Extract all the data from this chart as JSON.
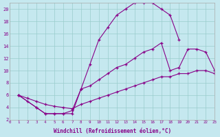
{
  "xlabel": "Windchill (Refroidissement éolien,°C)",
  "background_color": "#c5e8ef",
  "line_color": "#880088",
  "grid_color": "#99cccc",
  "xlim": [
    0,
    23
  ],
  "ylim": [
    2,
    21
  ],
  "curve1_x": [
    1,
    2,
    3,
    4,
    5,
    6,
    7,
    8,
    9,
    10,
    11,
    12,
    13,
    14,
    15,
    16,
    17,
    18,
    19
  ],
  "curve1_y": [
    6,
    5,
    4,
    3,
    3,
    3,
    3,
    7,
    11,
    15,
    17,
    19,
    20,
    21,
    21,
    21,
    20,
    19,
    15
  ],
  "curve2_x": [
    1,
    2,
    3,
    4,
    5,
    6,
    7,
    8,
    9,
    10,
    11,
    12,
    13,
    14,
    15,
    16,
    17,
    18,
    19,
    20,
    21,
    22,
    23
  ],
  "curve2_y": [
    6,
    5.5,
    5,
    4.5,
    4.2,
    4,
    3.8,
    4.5,
    5,
    5.5,
    6,
    6.5,
    7,
    7.5,
    8,
    8.5,
    9,
    9,
    9.5,
    9.5,
    10,
    10,
    9.5
  ],
  "curve3_x": [
    1,
    3,
    4,
    5,
    6,
    7,
    8,
    9,
    10,
    11,
    12,
    13,
    14,
    15,
    16,
    17,
    18,
    19,
    20,
    21,
    22,
    23
  ],
  "curve3_y": [
    6,
    4,
    3,
    3,
    3,
    3.5,
    7,
    7.5,
    8.5,
    9.5,
    10.5,
    11,
    12,
    13,
    13.5,
    14.5,
    10,
    10.5,
    13.5,
    13.5,
    13,
    10
  ],
  "xtick_fontsize": 4.2,
  "ytick_fontsize": 5.0,
  "xlabel_fontsize": 5.5
}
